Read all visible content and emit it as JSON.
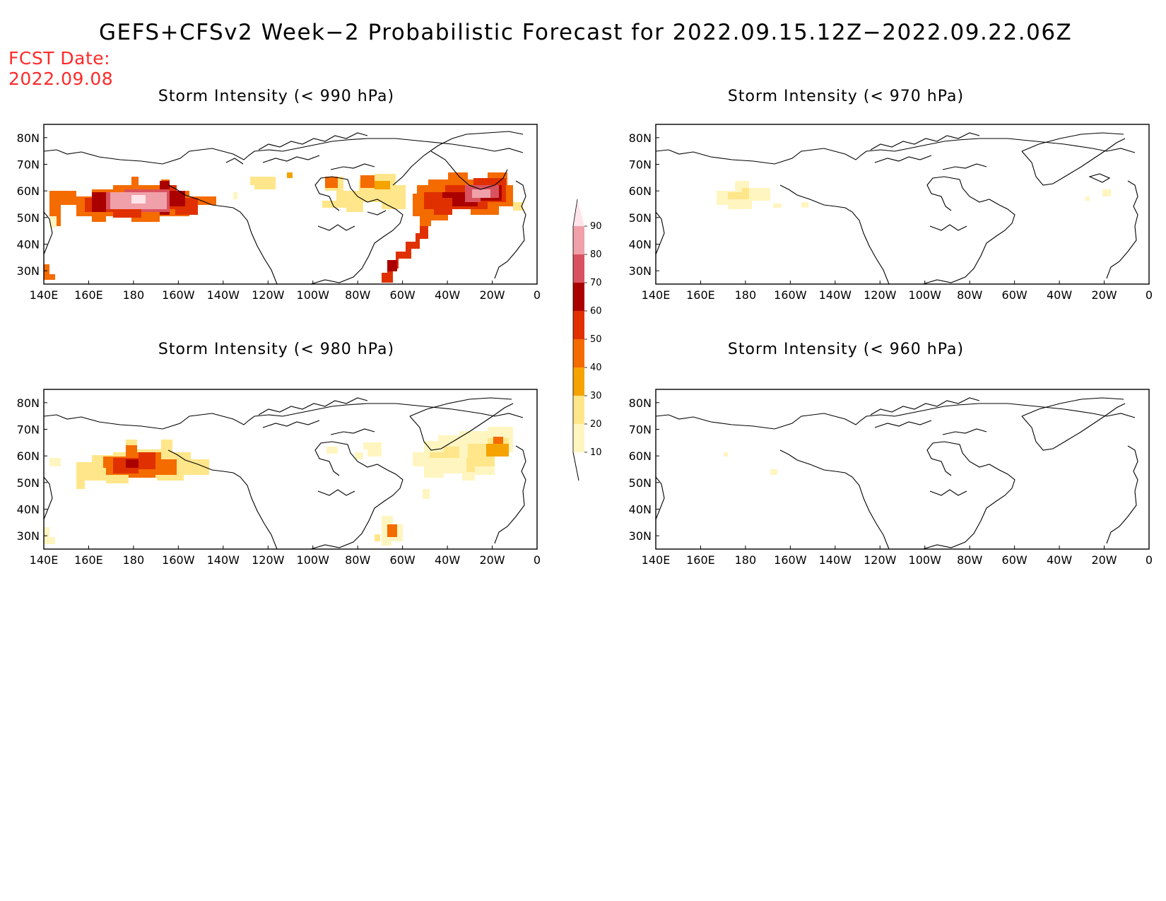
{
  "title": "GEFS+CFSv2 Week−2 Probabilistic Forecast for 2022.09.15.12Z−2022.09.22.06Z",
  "fcst_date_label": "FCST Date:",
  "fcst_date_value": "2022.09.08",
  "lon_ticks": [
    "140E",
    "160E",
    "180",
    "160W",
    "140W",
    "120W",
    "100W",
    "80W",
    "60W",
    "40W",
    "20W",
    "0"
  ],
  "lat_ticks": [
    "80N",
    "70N",
    "60N",
    "50N",
    "40N",
    "30N"
  ],
  "colorbar": {
    "levels": [
      10,
      20,
      30,
      40,
      50,
      60,
      70,
      80,
      90
    ],
    "colors": [
      "#fff5c0",
      "#ffe68a",
      "#f5a300",
      "#f46b00",
      "#e03000",
      "#aa0000",
      "#d9525f",
      "#f0a0a8",
      "#ffe4ea"
    ]
  },
  "panels": [
    {
      "id": "p990",
      "title": "Storm Intensity (< 990 hPa)"
    },
    {
      "id": "p970",
      "title": "Storm Intensity (< 970 hPa)"
    },
    {
      "id": "p980",
      "title": "Storm Intensity (< 980 hPa)"
    },
    {
      "id": "p960",
      "title": "Storm Intensity (< 960 hPa)"
    }
  ]
}
